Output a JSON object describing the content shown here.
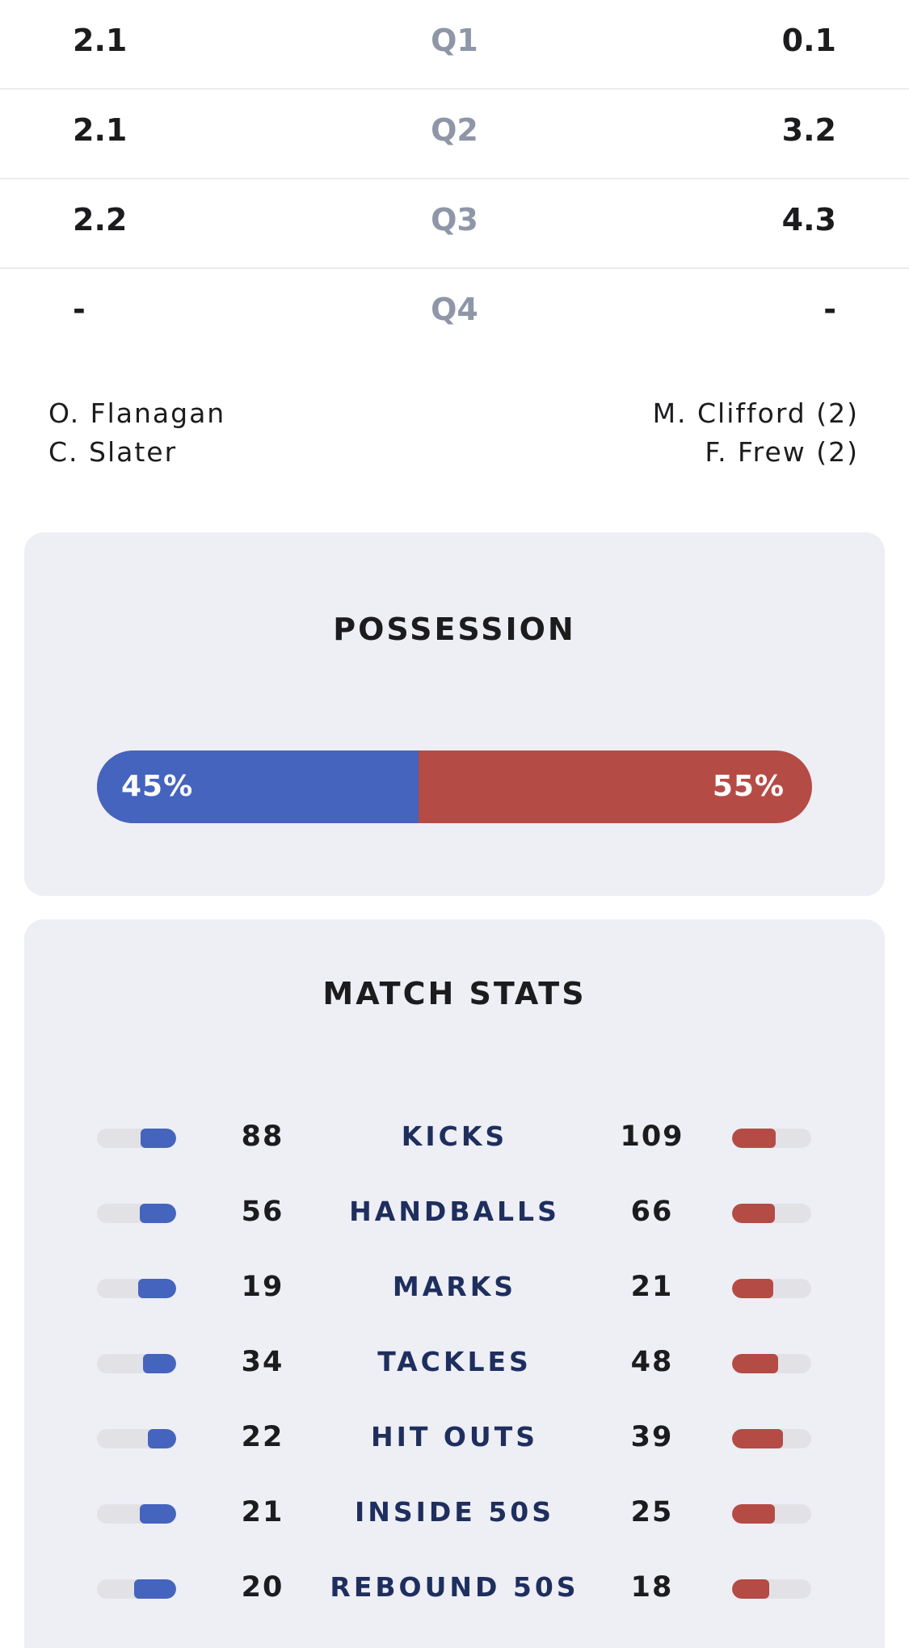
{
  "quarters": [
    {
      "label": "Q1",
      "home": "2.1",
      "away": "0.1"
    },
    {
      "label": "Q2",
      "home": "2.1",
      "away": "3.2"
    },
    {
      "label": "Q3",
      "home": "2.2",
      "away": "4.3"
    },
    {
      "label": "Q4",
      "home": "-",
      "away": "-"
    }
  ],
  "goal_scorers": {
    "home": [
      "O. Flanagan",
      "C. Slater"
    ],
    "away": [
      "M. Clifford (2)",
      "F. Frew (2)"
    ]
  },
  "possession": {
    "title": "POSSESSION",
    "home_percent": 45,
    "away_percent": 55,
    "home_label": "45%",
    "away_label": "55%"
  },
  "match_stats": {
    "title": "MATCH STATS",
    "rows": [
      {
        "label": "KICKS",
        "home": 88,
        "away": 109
      },
      {
        "label": "HANDBALLS",
        "home": 56,
        "away": 66
      },
      {
        "label": "MARKS",
        "home": 19,
        "away": 21
      },
      {
        "label": "TACKLES",
        "home": 34,
        "away": 48
      },
      {
        "label": "HIT OUTS",
        "home": 22,
        "away": 39
      },
      {
        "label": "INSIDE 50S",
        "home": 21,
        "away": 25
      },
      {
        "label": "REBOUND 50S",
        "home": 20,
        "away": 18
      }
    ]
  },
  "colors": {
    "home": "#4464be",
    "away": "#b54b45",
    "track": "#e2e2e6",
    "card": "#eeeef5",
    "stat_label": "#1e2f5e",
    "quarter_label": "#8e96a7"
  }
}
